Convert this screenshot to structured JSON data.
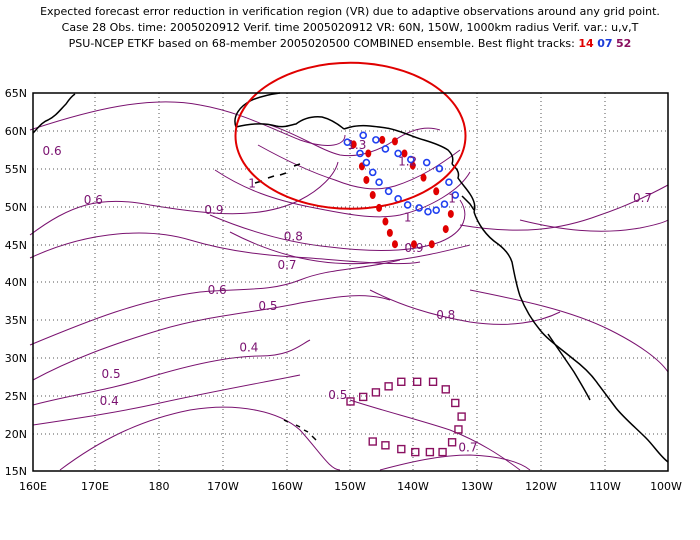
{
  "header": {
    "line1": "Expected forecast error reduction in verification region (VR) due to adaptive observations around any grid point.",
    "line2": "Case 28  Obs. time: 2005020912  Verif. time 2005020912  VR: 60N, 150W, 1000km radius  Verif. var.: u,v,T",
    "line3_prefix": "PSU-NCEP ETKF based on 68-member 2005020500 COMBINED ensemble.  Best flight tracks:",
    "track_a": "14",
    "track_b": "07",
    "track_c": "52"
  },
  "map": {
    "lat_labels": [
      "65N",
      "60N",
      "55N",
      "50N",
      "45N",
      "40N",
      "35N",
      "30N",
      "25N",
      "20N",
      "15N"
    ],
    "lon_labels": [
      "160E",
      "170E",
      "180",
      "170W",
      "160W",
      "150W",
      "140W",
      "130W",
      "120W",
      "110W",
      "100W"
    ],
    "contour_labels": [
      {
        "text": "0.6",
        "lon": 163.0,
        "lat": 56.8
      },
      {
        "text": "0.6",
        "lon": 169.5,
        "lat": 50.3
      },
      {
        "text": "0.9",
        "lon": -171.5,
        "lat": 49.0
      },
      {
        "text": "1",
        "lon": -165.5,
        "lat": 52.5
      },
      {
        "text": "1.3",
        "lon": -149.0,
        "lat": 57.6
      },
      {
        "text": "1.2",
        "lon": -141.0,
        "lat": 55.4
      },
      {
        "text": "1",
        "lon": -141.0,
        "lat": 48.0
      },
      {
        "text": "1",
        "lon": -134.0,
        "lat": 50.5
      },
      {
        "text": "0.8",
        "lon": -159.0,
        "lat": 45.5
      },
      {
        "text": "0.9",
        "lon": -140.0,
        "lat": 44.0
      },
      {
        "text": "0.7",
        "lon": -160.0,
        "lat": 41.7
      },
      {
        "text": "0.6",
        "lon": -171.0,
        "lat": 38.4
      },
      {
        "text": "0.5",
        "lon": -163.0,
        "lat": 36.3
      },
      {
        "text": "0.8",
        "lon": -135.0,
        "lat": 35.1
      },
      {
        "text": "0.7",
        "lon": -104.0,
        "lat": 50.6
      },
      {
        "text": "0.4",
        "lon": -166.0,
        "lat": 30.8
      },
      {
        "text": "0.5",
        "lon": 172.3,
        "lat": 27.3
      },
      {
        "text": "0.4",
        "lon": 172.0,
        "lat": 23.7
      },
      {
        "text": "0.5",
        "lon": -152.0,
        "lat": 24.5
      },
      {
        "text": "0.7",
        "lon": -131.5,
        "lat": 17.6
      }
    ],
    "vr_circle": {
      "lon": -150,
      "lat": 60
    },
    "flight_tracks": {
      "red_14": {
        "color": "#e00000",
        "points": [
          [
            -149.5,
            58.2
          ],
          [
            -147.2,
            57.0
          ],
          [
            -145.0,
            58.8
          ],
          [
            -143.0,
            58.6
          ],
          [
            -141.5,
            57.0
          ],
          [
            -140.2,
            55.4
          ],
          [
            -138.5,
            53.8
          ],
          [
            -148.2,
            55.3
          ],
          [
            -147.5,
            53.5
          ],
          [
            -146.5,
            51.5
          ],
          [
            -145.5,
            49.8
          ],
          [
            -144.5,
            48.0
          ],
          [
            -143.8,
            46.5
          ],
          [
            -143.0,
            45.0
          ],
          [
            -140.0,
            45.0
          ],
          [
            -137.2,
            45.0
          ],
          [
            -135.0,
            47.0
          ],
          [
            -134.2,
            49.0
          ],
          [
            -136.5,
            52.0
          ]
        ]
      },
      "blue_07": {
        "color": "#2040f0",
        "points": [
          [
            -150.5,
            58.5
          ],
          [
            -148.0,
            59.4
          ],
          [
            -146.0,
            58.8
          ],
          [
            -144.5,
            57.6
          ],
          [
            -142.5,
            57.0
          ],
          [
            -140.5,
            56.2
          ],
          [
            -138.0,
            55.8
          ],
          [
            -136.0,
            55.0
          ],
          [
            -134.5,
            53.2
          ],
          [
            -133.5,
            51.5
          ],
          [
            -135.2,
            50.3
          ],
          [
            -136.5,
            49.5
          ],
          [
            -137.8,
            49.3
          ],
          [
            -139.2,
            49.8
          ],
          [
            -141.0,
            50.2
          ],
          [
            -142.5,
            51.0
          ],
          [
            -144.0,
            52.0
          ],
          [
            -145.5,
            53.2
          ],
          [
            -146.5,
            54.5
          ],
          [
            -147.5,
            55.8
          ],
          [
            -148.5,
            57.0
          ]
        ]
      },
      "purple_52": {
        "color": "#8a1060",
        "points": [
          [
            -150.0,
            24.2
          ],
          [
            -148.0,
            24.8
          ],
          [
            -146.0,
            25.4
          ],
          [
            -144.0,
            26.2
          ],
          [
            -142.0,
            26.8
          ],
          [
            -139.5,
            26.8
          ],
          [
            -137.0,
            26.8
          ],
          [
            -135.0,
            25.8
          ],
          [
            -133.5,
            24.0
          ],
          [
            -132.5,
            22.2
          ],
          [
            -133.0,
            20.5
          ],
          [
            -134.0,
            18.8
          ],
          [
            -135.5,
            17.5
          ],
          [
            -137.5,
            17.5
          ],
          [
            -139.8,
            17.5
          ],
          [
            -142.0,
            17.9
          ],
          [
            -144.5,
            18.4
          ],
          [
            -146.5,
            18.9
          ]
        ]
      }
    }
  }
}
